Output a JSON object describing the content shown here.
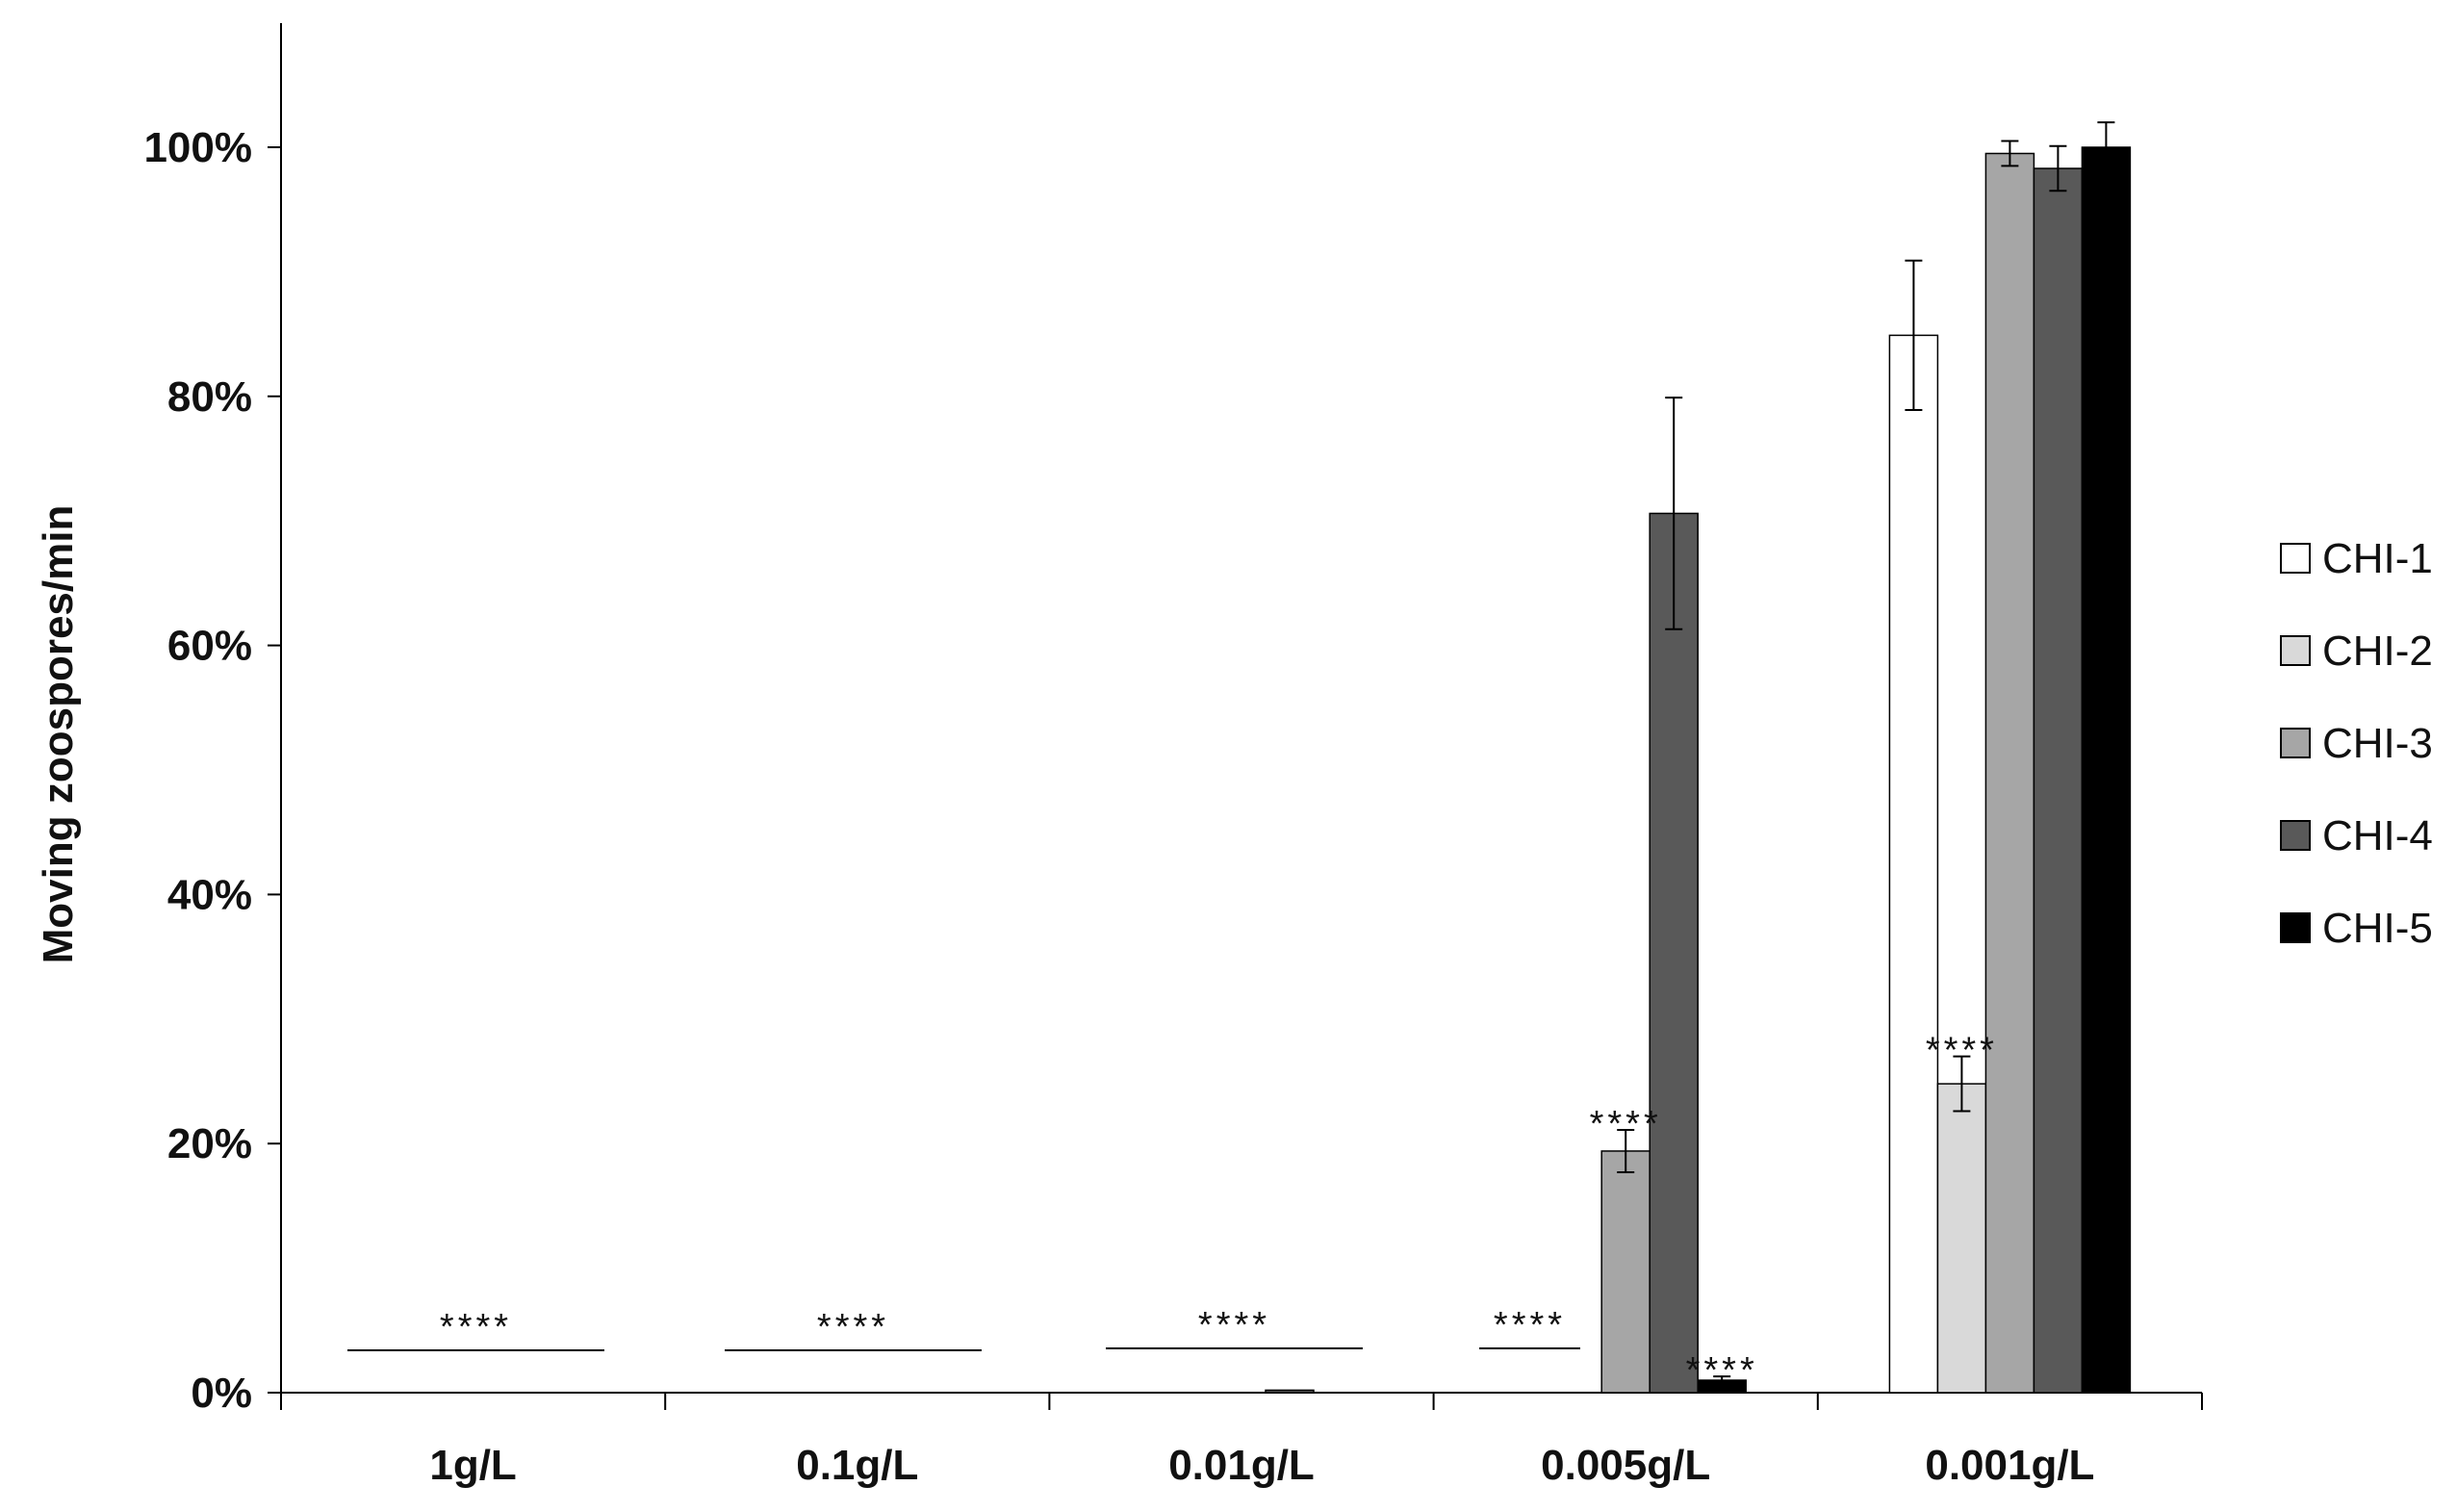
{
  "chart_data": {
    "type": "bar",
    "title": "",
    "xlabel": "",
    "ylabel": "Moving zoospores/min",
    "ylim": [
      0,
      1.1
    ],
    "yticks": [
      0,
      0.2,
      0.4,
      0.6,
      0.8,
      1.0
    ],
    "ytick_labels": [
      "0%",
      "20%",
      "40%",
      "60%",
      "80%",
      "100%"
    ],
    "categories": [
      "1g/L",
      "0.1g/L",
      "0.01g/L",
      "0.005g/L",
      "0.001g/L"
    ],
    "series": [
      {
        "name": "CHI-1",
        "color": "#ffffff",
        "values": [
          0,
          0,
          0,
          0,
          0.849
        ],
        "errors": [
          0,
          0,
          0,
          0,
          0.06
        ]
      },
      {
        "name": "CHI-2",
        "color": "#d9d9d9",
        "values": [
          0,
          0,
          0,
          0,
          0.248
        ],
        "errors": [
          0,
          0,
          0,
          0,
          0.022
        ]
      },
      {
        "name": "CHI-3",
        "color": "#a6a6a6",
        "values": [
          0,
          0,
          0,
          0.194,
          0.995
        ],
        "errors": [
          0,
          0,
          0,
          0.017,
          0.01
        ]
      },
      {
        "name": "CHI-4",
        "color": "#595959",
        "values": [
          0,
          0,
          0.002,
          0.706,
          0.983
        ],
        "errors": [
          0,
          0,
          0,
          0.093,
          0.018
        ]
      },
      {
        "name": "CHI-5",
        "color": "#000000",
        "values": [
          0,
          0,
          0,
          0.01,
          1.0
        ],
        "errors": [
          0,
          0,
          0,
          0.003,
          0.02
        ]
      }
    ],
    "significance": [
      {
        "category": 0,
        "label": "****",
        "type": "group-line"
      },
      {
        "category": 1,
        "label": "****",
        "type": "group-line"
      },
      {
        "category": 2,
        "label": "****",
        "type": "group-line"
      },
      {
        "category": 3,
        "label": "****",
        "type": "group-line"
      },
      {
        "category": 3,
        "series": 2,
        "label": "****",
        "type": "bar"
      },
      {
        "category": 3,
        "series": 4,
        "label": "****",
        "type": "bar"
      },
      {
        "category": 4,
        "series": 1,
        "label": "****",
        "type": "bar"
      }
    ],
    "legend": "right"
  }
}
